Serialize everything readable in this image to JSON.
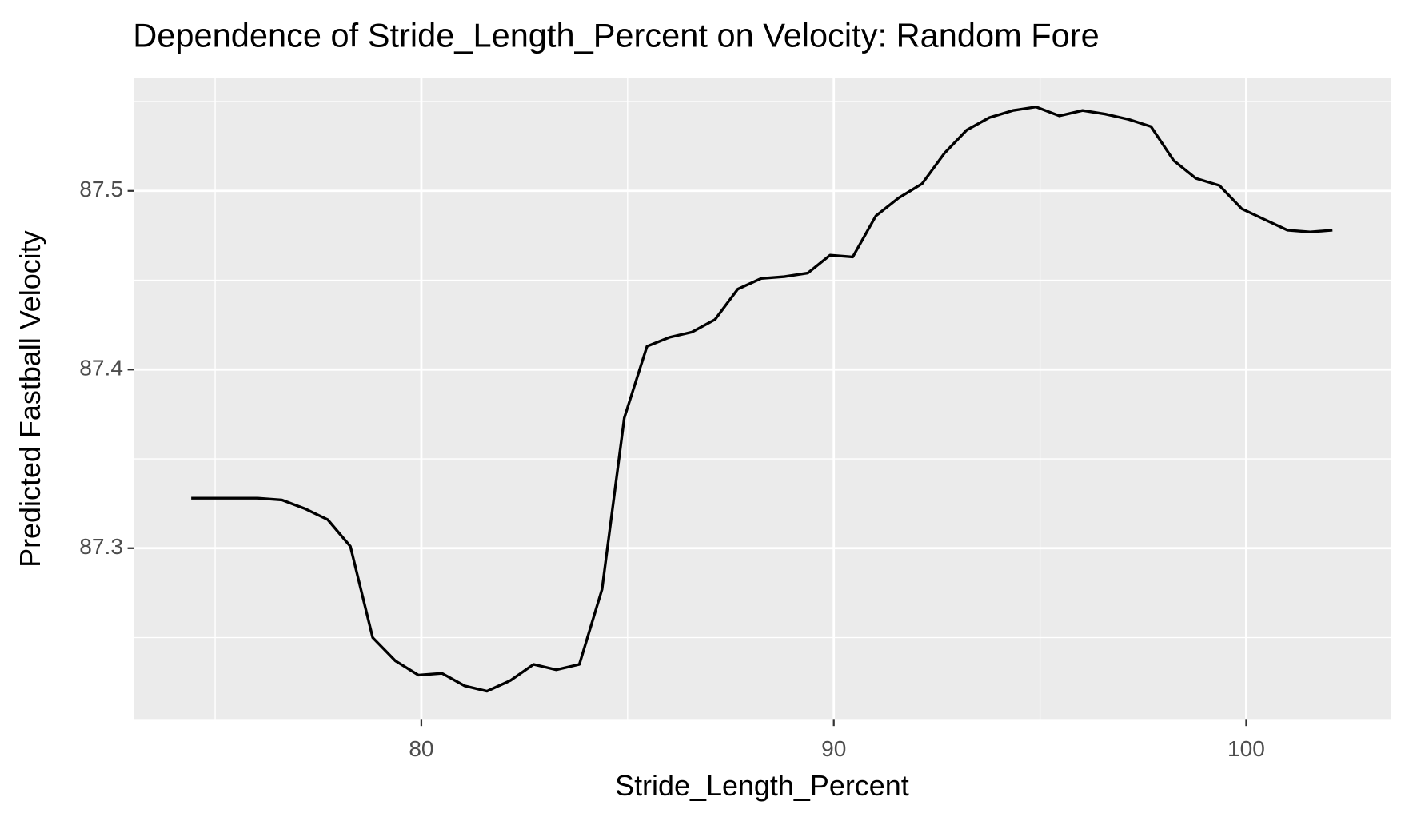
{
  "chart_data": {
    "type": "line",
    "title": "Dependence of Stride_Length_Percent on Velocity: Random Fore",
    "x_label": "Stride_Length_Percent",
    "y_label": "Predicted Fastball Velocity",
    "x": [
      74.42,
      75.01,
      76.03,
      76.62,
      77.19,
      77.73,
      78.28,
      78.82,
      79.37,
      79.93,
      80.5,
      81.05,
      81.59,
      82.16,
      82.72,
      83.27,
      83.83,
      84.38,
      84.92,
      85.47,
      86.01,
      86.56,
      87.12,
      87.67,
      88.24,
      88.8,
      89.37,
      89.91,
      90.46,
      91.02,
      91.57,
      92.14,
      92.68,
      93.22,
      93.77,
      94.34,
      94.9,
      95.47,
      96.03,
      96.58,
      97.15,
      97.69,
      98.24,
      98.78,
      99.35,
      99.89,
      100.44,
      101.0,
      101.55,
      102.09
    ],
    "series": [
      {
        "color": "#000000",
        "values": [
          87.328,
          87.328,
          87.328,
          87.327,
          87.322,
          87.316,
          87.301,
          87.25,
          87.237,
          87.229,
          87.23,
          87.223,
          87.22,
          87.226,
          87.235,
          87.232,
          87.235,
          87.277,
          87.373,
          87.413,
          87.418,
          87.421,
          87.428,
          87.445,
          87.451,
          87.452,
          87.454,
          87.464,
          87.463,
          87.486,
          87.496,
          87.504,
          87.521,
          87.534,
          87.541,
          87.545,
          87.547,
          87.542,
          87.545,
          87.543,
          87.54,
          87.536,
          87.517,
          87.507,
          87.503,
          87.49,
          87.484,
          87.478,
          87.477,
          87.478
        ]
      }
    ],
    "xlim": [
      73.03,
      103.51
    ],
    "xticks": [
      80,
      90,
      100
    ],
    "ylim": [
      87.204,
      87.563
    ],
    "yticks": [
      87.3,
      87.4,
      87.5
    ],
    "grid": true
  }
}
